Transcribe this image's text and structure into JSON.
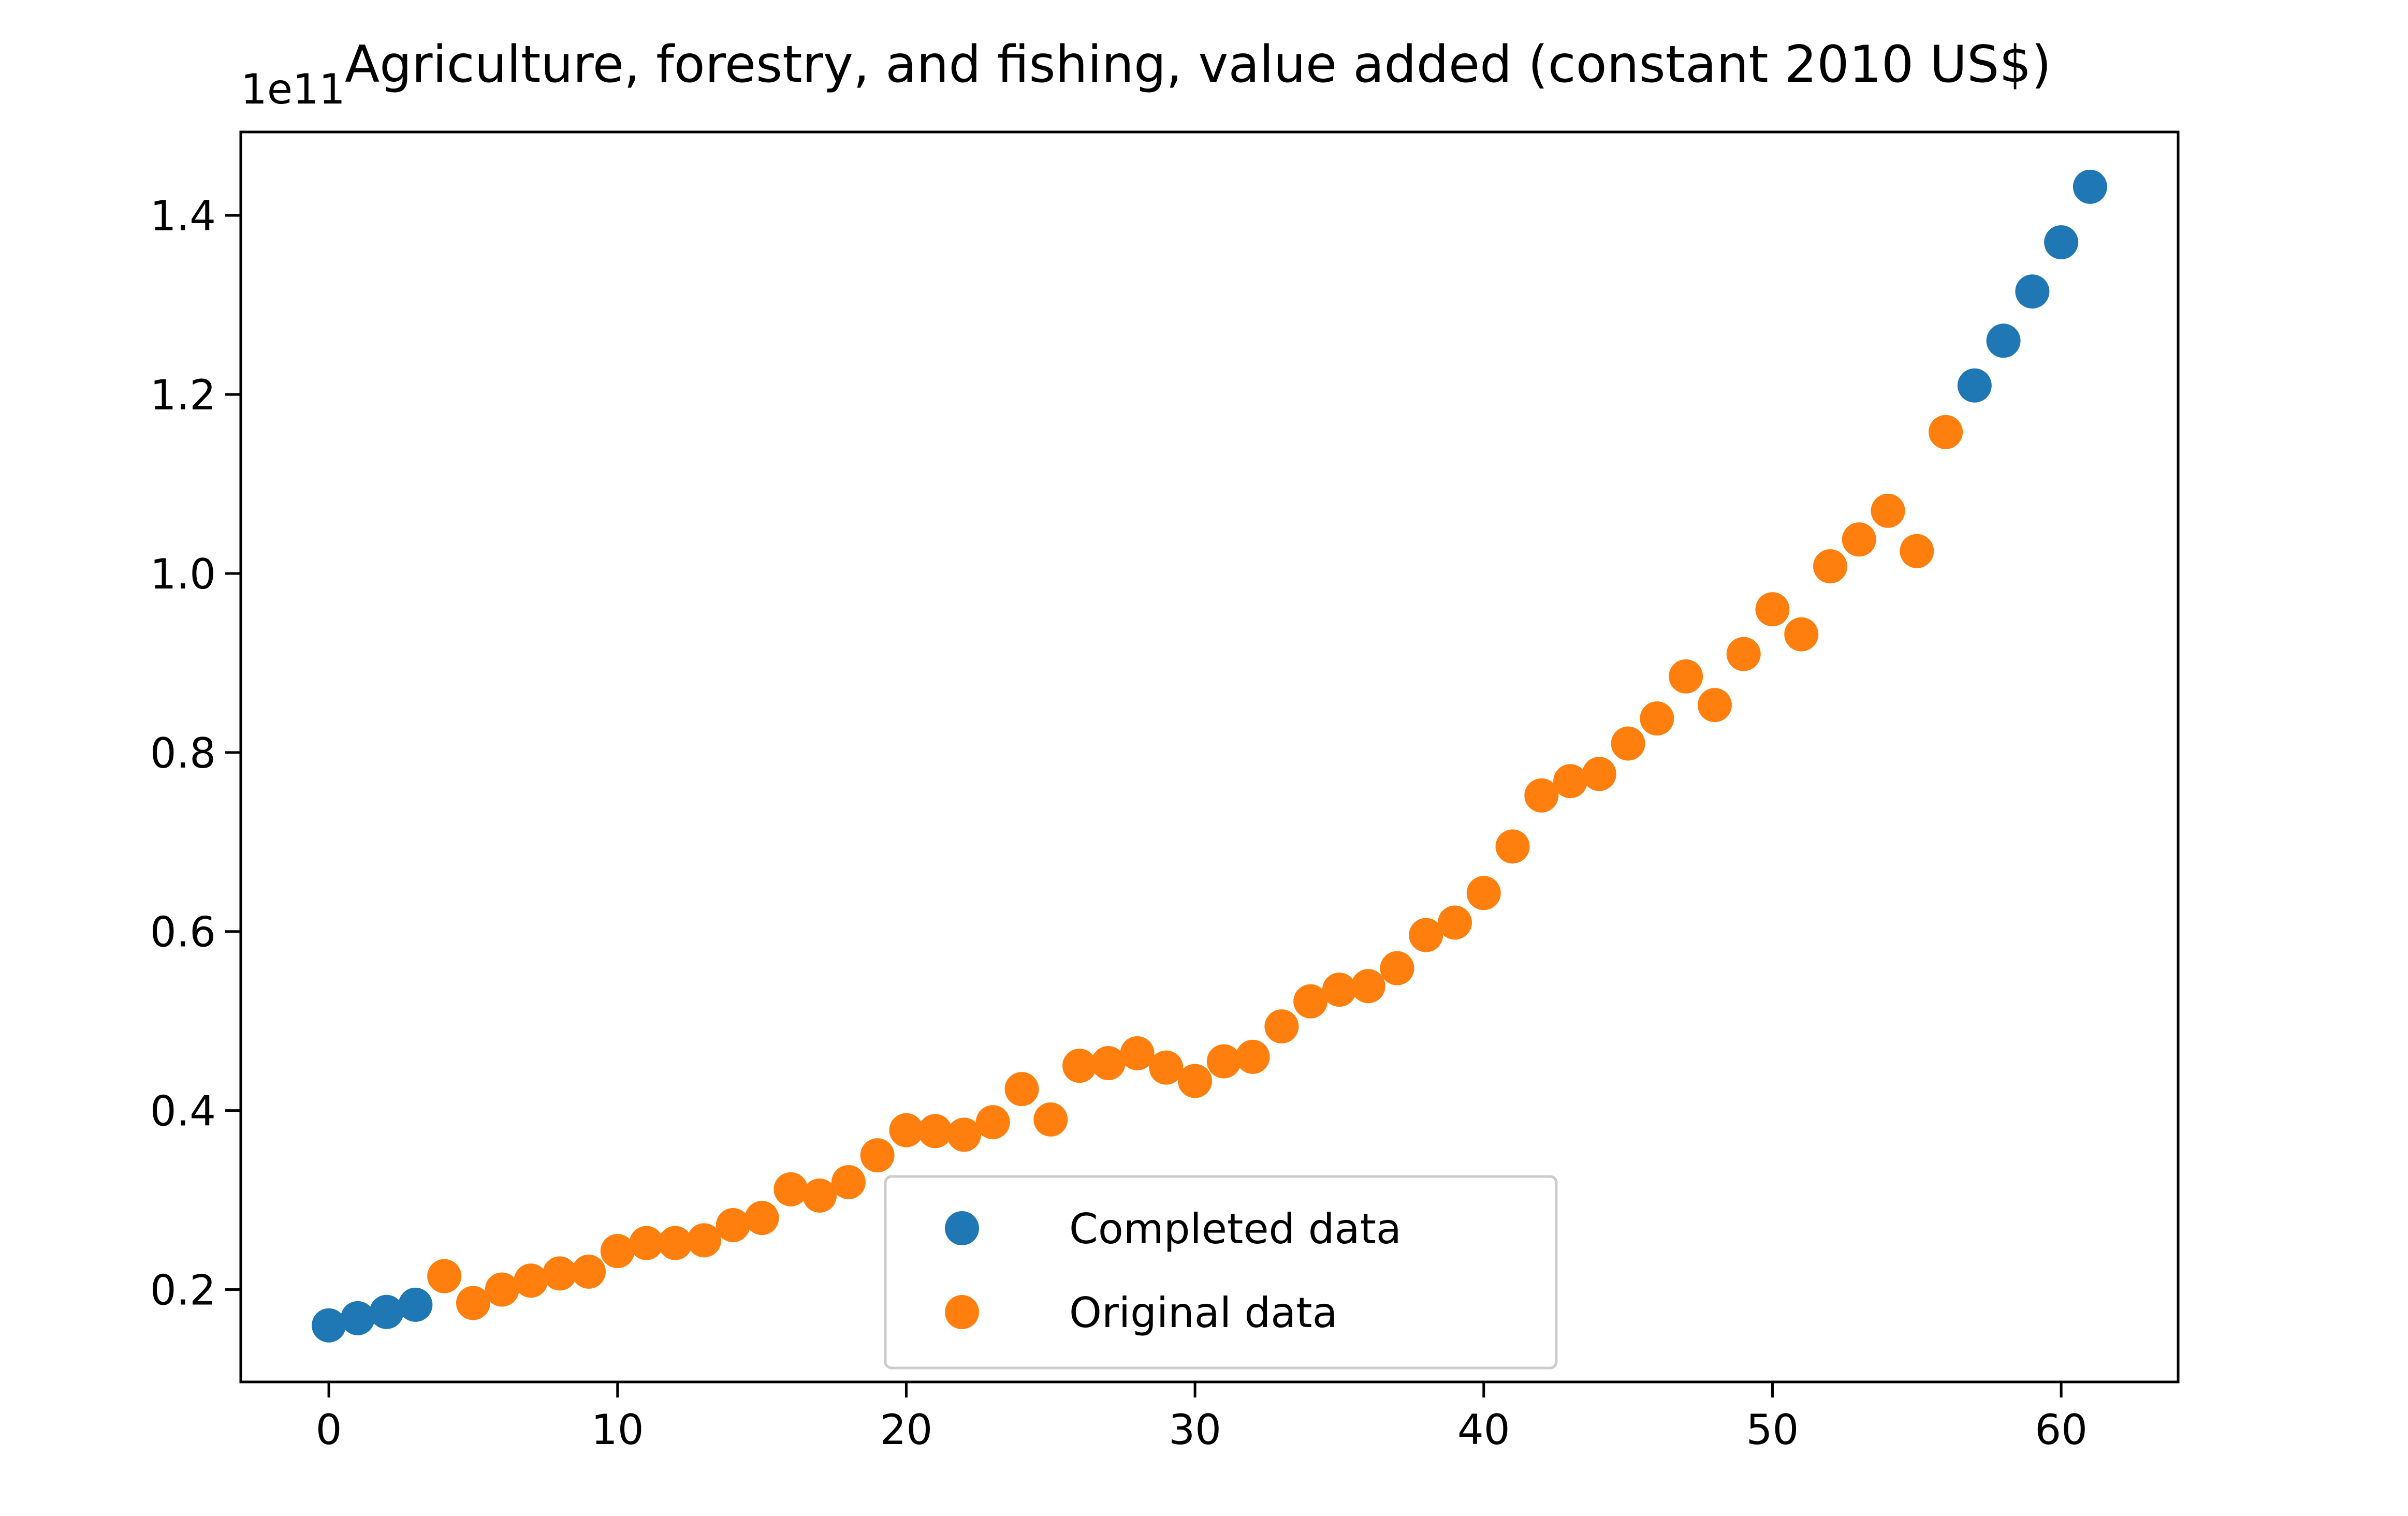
{
  "chart_data": {
    "type": "scatter",
    "title": "Agriculture, forestry, and fishing, value added (constant 2010 US$)",
    "offset_text": "1e11",
    "xlabel": "",
    "ylabel": "",
    "xlim": [
      -3.05,
      64.05
    ],
    "ylim": [
      0.0968,
      1.4932
    ],
    "xticks": [
      0,
      10,
      20,
      30,
      40,
      50,
      60
    ],
    "xtick_labels": [
      "0",
      "10",
      "20",
      "30",
      "40",
      "50",
      "60"
    ],
    "yticks": [
      0.2,
      0.4,
      0.6,
      0.8,
      1.0,
      1.2,
      1.4
    ],
    "ytick_labels": [
      "0.2",
      "0.4",
      "0.6",
      "0.8",
      "1.0",
      "1.2",
      "1.4"
    ],
    "grid": false,
    "legend_position": "lower center",
    "series": [
      {
        "name": "Completed data",
        "color": "#1f77b4",
        "x": [
          0,
          1,
          2,
          3,
          57,
          58,
          59,
          60,
          61
        ],
        "y": [
          0.16,
          0.168,
          0.175,
          0.183,
          1.21,
          1.26,
          1.315,
          1.37,
          1.432
        ]
      },
      {
        "name": "Original data",
        "color": "#ff7f0e",
        "x": [
          4,
          5,
          6,
          7,
          8,
          9,
          10,
          11,
          12,
          13,
          14,
          15,
          16,
          17,
          18,
          19,
          20,
          21,
          22,
          23,
          24,
          25,
          26,
          27,
          28,
          29,
          30,
          31,
          32,
          33,
          34,
          35,
          36,
          37,
          38,
          39,
          40,
          41,
          42,
          43,
          44,
          45,
          46,
          47,
          48,
          49,
          50,
          51,
          52,
          53,
          54,
          55,
          56
        ],
        "y": [
          0.215,
          0.185,
          0.2,
          0.21,
          0.218,
          0.22,
          0.243,
          0.252,
          0.252,
          0.255,
          0.272,
          0.28,
          0.312,
          0.305,
          0.32,
          0.35,
          0.378,
          0.377,
          0.373,
          0.387,
          0.424,
          0.39,
          0.45,
          0.453,
          0.464,
          0.448,
          0.433,
          0.455,
          0.46,
          0.494,
          0.522,
          0.535,
          0.539,
          0.559,
          0.596,
          0.61,
          0.643,
          0.695,
          0.752,
          0.768,
          0.776,
          0.81,
          0.838,
          0.885,
          0.853,
          0.91,
          0.96,
          0.932,
          1.008,
          1.038,
          1.07,
          1.025,
          1.158
        ]
      }
    ]
  }
}
